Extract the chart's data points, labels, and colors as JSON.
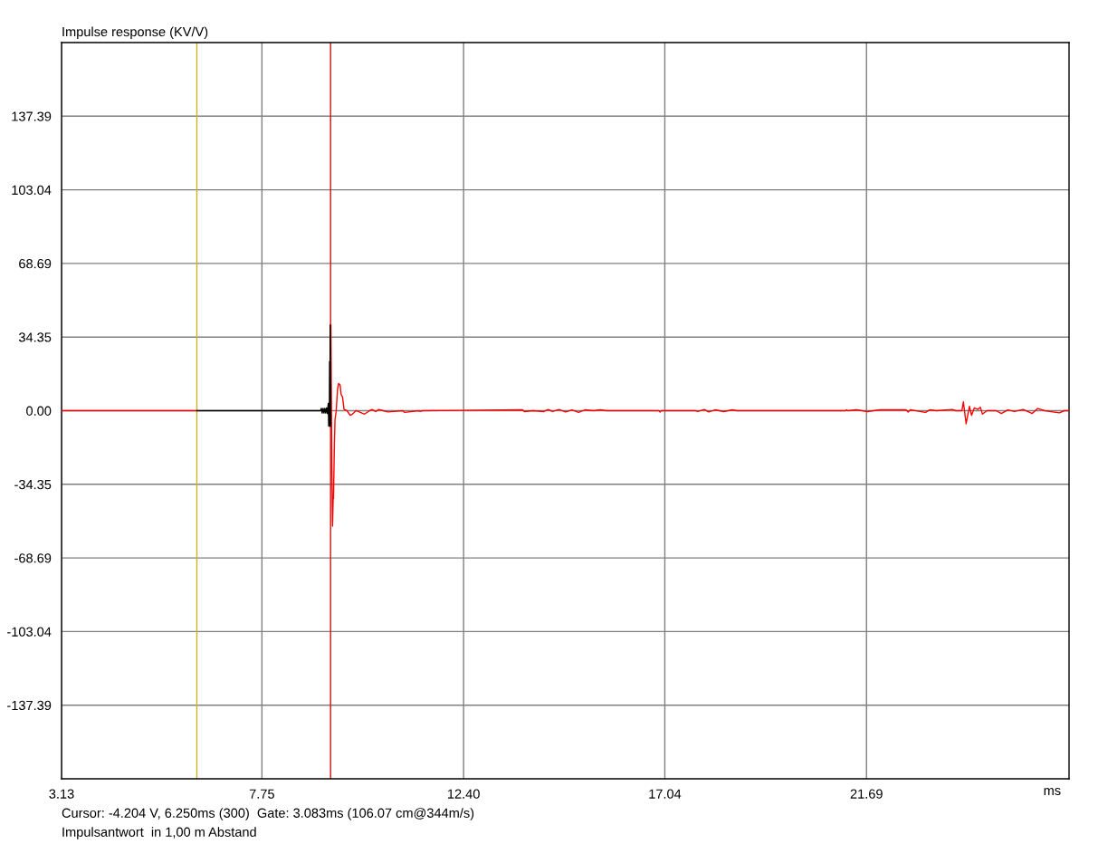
{
  "chart_data": {
    "type": "line",
    "title": "Impulse response (KV/V)",
    "xlabel": "ms",
    "annotations": [
      "Cursor: -4.204 V, 6.250ms (300)  Gate: 3.083ms (106.07 cm@344m/s)",
      "Impulsantwort  in 1,00 m Abstand"
    ],
    "xlim": [
      3.13,
      26.36
    ],
    "xticks": [
      3.13,
      7.75,
      {
        "value": 12.4,
        "label": "12.40"
      },
      17.04,
      21.69
    ],
    "ylim": [
      -171.74,
      171.74
    ],
    "yticks": [
      {
        "value": -137.39,
        "label": "-137.39"
      },
      {
        "value": -103.04,
        "label": "-103.04"
      },
      {
        "value": -68.69,
        "label": "-68.69"
      },
      {
        "value": -34.35,
        "label": "-34.35"
      },
      {
        "value": 0,
        "label": "0.00"
      },
      {
        "value": 34.35,
        "label": "34.35"
      },
      {
        "value": 68.69,
        "label": "68.69"
      },
      {
        "value": 103.04,
        "label": "103.04"
      },
      {
        "value": 137.39,
        "label": "137.39"
      }
    ],
    "grid": true,
    "legend": false,
    "marker": "none",
    "line_style": "solid",
    "ref_lines": [
      {
        "axis": "x",
        "value": 6.25,
        "color": "#c8b428"
      },
      {
        "axis": "x",
        "value": 9.333,
        "color": "#d01010"
      }
    ],
    "series": [
      {
        "color": "#ff0000",
        "x": [
          3.13,
          6.25,
          7.0,
          9.333,
          9.34,
          9.35,
          9.362,
          9.379,
          9.393,
          9.4,
          9.421,
          9.435,
          9.463,
          9.492,
          9.519,
          9.554,
          9.575,
          9.608,
          9.644,
          9.713,
          9.784,
          9.838,
          9.922,
          10.118,
          10.201,
          10.285,
          10.375,
          10.443,
          10.548,
          10.652,
          11.001,
          11.036,
          11.37,
          11.398,
          11.45,
          13.76,
          13.8,
          14.0,
          14.25,
          14.35,
          14.45,
          14.6,
          14.75,
          14.9,
          15.05,
          15.2,
          15.4,
          15.55,
          15.7,
          16.9,
          16.93,
          16.96,
          17.75,
          17.8,
          17.95,
          18.05,
          18.2,
          18.4,
          18.6,
          18.7,
          21.2,
          21.23,
          21.26,
          21.46,
          21.71,
          22.0,
          22.6,
          22.65,
          22.7,
          23.05,
          23.15,
          23.3,
          23.67,
          23.75,
          23.89,
          23.924,
          23.987,
          24.064,
          24.112,
          24.175,
          24.259,
          24.315,
          24.363,
          24.467,
          24.676,
          24.801,
          24.95,
          25.1,
          25.3,
          25.511,
          25.637,
          25.8,
          26.138,
          26.25,
          26.35
        ],
        "values": [
          0,
          0,
          null,
          -7.2,
          40.3,
          10,
          -25,
          -53.9,
          -40.3,
          -41,
          -15.7,
          -4.2,
          0,
          9.8,
          12.7,
          11.9,
          7.6,
          6.4,
          0.6,
          0,
          -2.2,
          -1.6,
          0.1,
          -1.6,
          -0.4,
          0.6,
          -0.4,
          0.6,
          0,
          -0.6,
          0,
          -0.8,
          0,
          -0.4,
          0,
          0.4,
          -0.4,
          0,
          -0.4,
          0.6,
          -0.4,
          0.6,
          -0.6,
          0.4,
          -0.8,
          0.4,
          0,
          0.4,
          0,
          0,
          -0.6,
          0,
          0,
          -0.4,
          0.6,
          -0.6,
          0.4,
          -0.4,
          0.4,
          0,
          0,
          0.4,
          0,
          0.4,
          -0.4,
          0.4,
          0.4,
          -0.6,
          0.4,
          -0.8,
          0.4,
          0,
          0.6,
          0,
          0,
          4.1,
          -6.1,
          2.0,
          -2.2,
          1.3,
          0.6,
          1.6,
          -1.6,
          0,
          0,
          -1.3,
          0.4,
          -0.4,
          0.6,
          -1.3,
          1.0,
          0,
          -1.0,
          0,
          0
        ]
      },
      {
        "color": "#000000",
        "x": [
          6.25,
          9.1,
          9.12,
          9.14,
          9.16,
          9.18,
          9.2,
          9.22,
          9.24,
          9.26,
          9.28,
          9.29,
          9.3,
          9.305,
          9.31,
          9.315,
          9.325,
          9.333
        ],
        "values": [
          0,
          0,
          1.1,
          -1.1,
          1.1,
          -1.1,
          1.1,
          -1.1,
          1.3,
          -1.3,
          3.4,
          -7.2,
          3.4,
          -7.2,
          22.9,
          -7.2,
          40,
          -7.2
        ]
      }
    ]
  }
}
